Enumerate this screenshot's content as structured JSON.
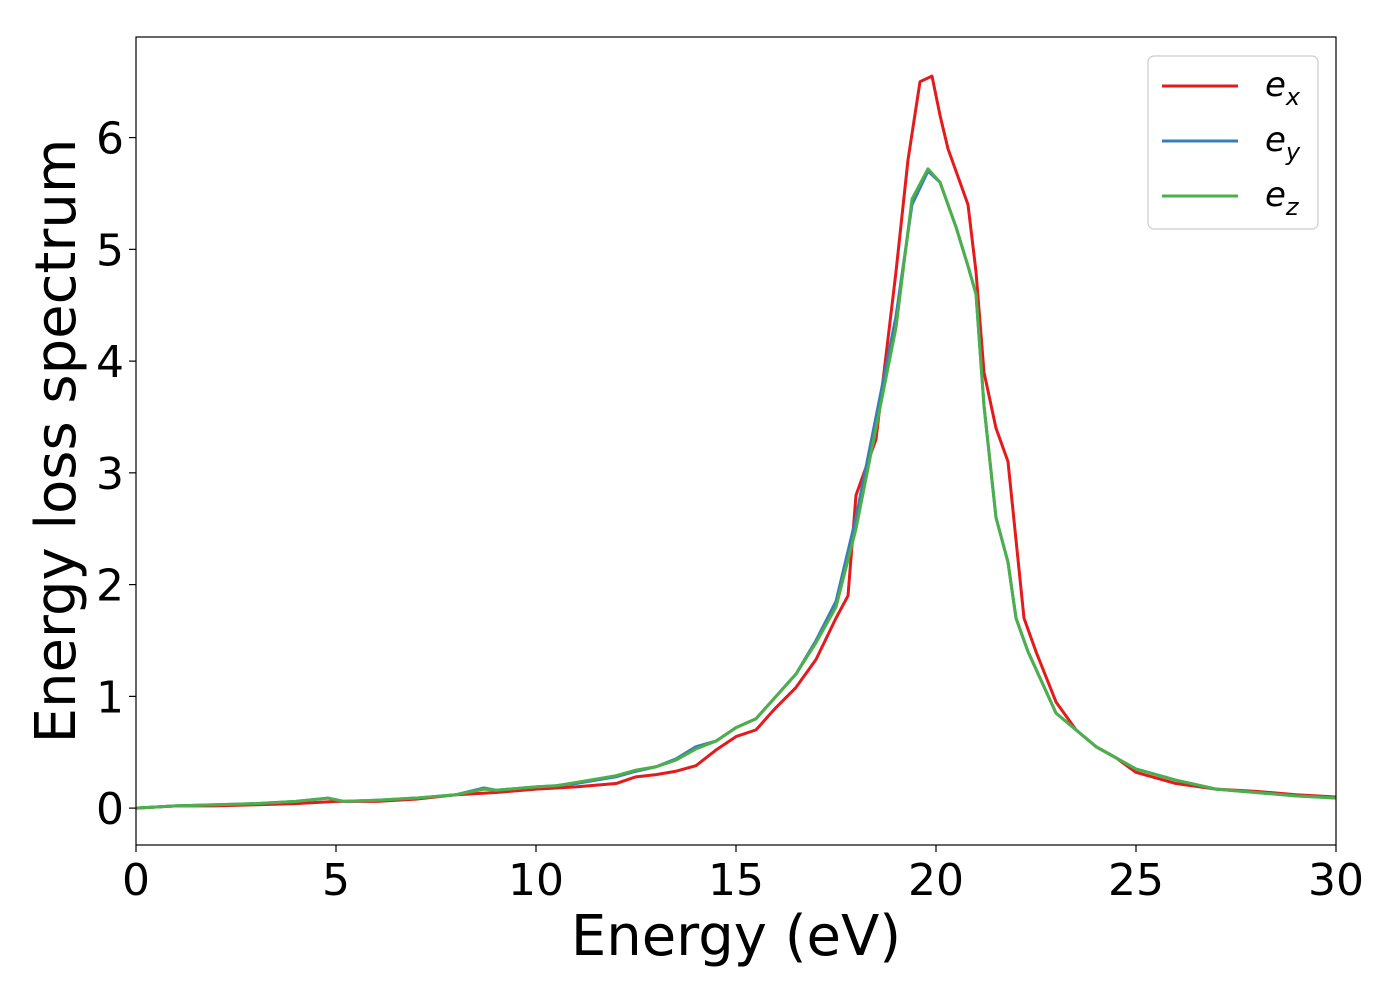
{
  "chart_data": {
    "type": "line",
    "xlabel": "Energy (eV)",
    "ylabel": "Energy loss spectrum",
    "xlim": [
      0,
      30
    ],
    "ylim": [
      -0.33,
      6.9
    ],
    "xticks": [
      "0",
      "5",
      "10",
      "15",
      "20",
      "25",
      "30"
    ],
    "yticks": [
      "0",
      "1",
      "2",
      "3",
      "4",
      "5",
      "6"
    ],
    "grid": false,
    "legend_position": "top-right",
    "series": [
      {
        "name": "e",
        "subscript": "x",
        "color": "#e41a1c",
        "x": [
          0,
          1,
          2,
          3,
          4,
          5,
          6,
          7,
          8,
          9,
          10,
          11,
          12,
          12.5,
          13,
          13.5,
          14,
          14.5,
          15,
          15.5,
          16,
          16.5,
          17,
          17.5,
          17.8,
          18,
          18.5,
          19,
          19.3,
          19.6,
          19.9,
          20.1,
          20.3,
          20.5,
          20.8,
          21,
          21.2,
          21.5,
          21.8,
          22,
          22.2,
          22.5,
          23,
          23.5,
          24,
          24.5,
          25,
          25.5,
          26,
          27,
          28,
          29,
          30
        ],
        "y": [
          0.0,
          0.02,
          0.02,
          0.03,
          0.04,
          0.06,
          0.06,
          0.08,
          0.12,
          0.14,
          0.17,
          0.19,
          0.22,
          0.28,
          0.3,
          0.33,
          0.38,
          0.52,
          0.64,
          0.7,
          0.9,
          1.08,
          1.33,
          1.7,
          1.9,
          2.8,
          3.3,
          4.8,
          5.8,
          6.5,
          6.55,
          6.2,
          5.9,
          5.7,
          5.4,
          4.8,
          3.9,
          3.4,
          3.1,
          2.4,
          1.7,
          1.4,
          0.95,
          0.7,
          0.55,
          0.45,
          0.32,
          0.27,
          0.22,
          0.17,
          0.15,
          0.12,
          0.1
        ]
      },
      {
        "name": "e",
        "subscript": "y",
        "color": "#377eb8",
        "x": [
          0,
          1,
          2,
          3,
          4,
          4.8,
          5.2,
          6,
          7,
          8,
          8.7,
          9,
          10,
          10.5,
          11,
          12,
          12.5,
          13,
          13.5,
          14,
          14.5,
          15,
          15.5,
          16,
          16.5,
          17,
          17.5,
          18,
          18.5,
          19,
          19.4,
          19.8,
          20.1,
          20.5,
          20.8,
          21,
          21.2,
          21.5,
          21.8,
          22,
          22.3,
          23,
          23.5,
          24,
          24.5,
          25,
          25.5,
          26,
          27,
          28,
          29,
          30
        ],
        "y": [
          0.0,
          0.02,
          0.03,
          0.04,
          0.06,
          0.09,
          0.06,
          0.07,
          0.09,
          0.12,
          0.18,
          0.16,
          0.19,
          0.2,
          0.22,
          0.28,
          0.33,
          0.37,
          0.44,
          0.55,
          0.6,
          0.72,
          0.8,
          1.0,
          1.2,
          1.5,
          1.85,
          2.6,
          3.5,
          4.4,
          5.4,
          5.7,
          5.6,
          5.2,
          4.85,
          4.6,
          3.6,
          2.6,
          2.2,
          1.7,
          1.4,
          0.85,
          0.7,
          0.55,
          0.45,
          0.35,
          0.3,
          0.25,
          0.17,
          0.14,
          0.11,
          0.09
        ]
      },
      {
        "name": "e",
        "subscript": "z",
        "color": "#4daf4a",
        "x": [
          0,
          1,
          2,
          3,
          4,
          4.8,
          5.2,
          6,
          7,
          8,
          8.7,
          9,
          10,
          10.5,
          11,
          12,
          12.5,
          13,
          13.5,
          14,
          14.5,
          15,
          15.5,
          16,
          16.5,
          17,
          17.5,
          18,
          18.5,
          19,
          19.4,
          19.8,
          20.1,
          20.5,
          20.8,
          21,
          21.2,
          21.5,
          21.8,
          22,
          22.3,
          23,
          23.5,
          24,
          24.5,
          25,
          25.5,
          26,
          27,
          28,
          29,
          30
        ],
        "y": [
          0.0,
          0.02,
          0.03,
          0.04,
          0.06,
          0.09,
          0.06,
          0.07,
          0.09,
          0.12,
          0.17,
          0.16,
          0.19,
          0.2,
          0.23,
          0.29,
          0.34,
          0.37,
          0.43,
          0.53,
          0.6,
          0.72,
          0.8,
          1.0,
          1.2,
          1.48,
          1.8,
          2.5,
          3.4,
          4.3,
          5.45,
          5.72,
          5.6,
          5.2,
          4.85,
          4.6,
          3.6,
          2.6,
          2.2,
          1.7,
          1.4,
          0.85,
          0.7,
          0.55,
          0.45,
          0.35,
          0.3,
          0.25,
          0.17,
          0.14,
          0.11,
          0.09
        ]
      }
    ]
  }
}
